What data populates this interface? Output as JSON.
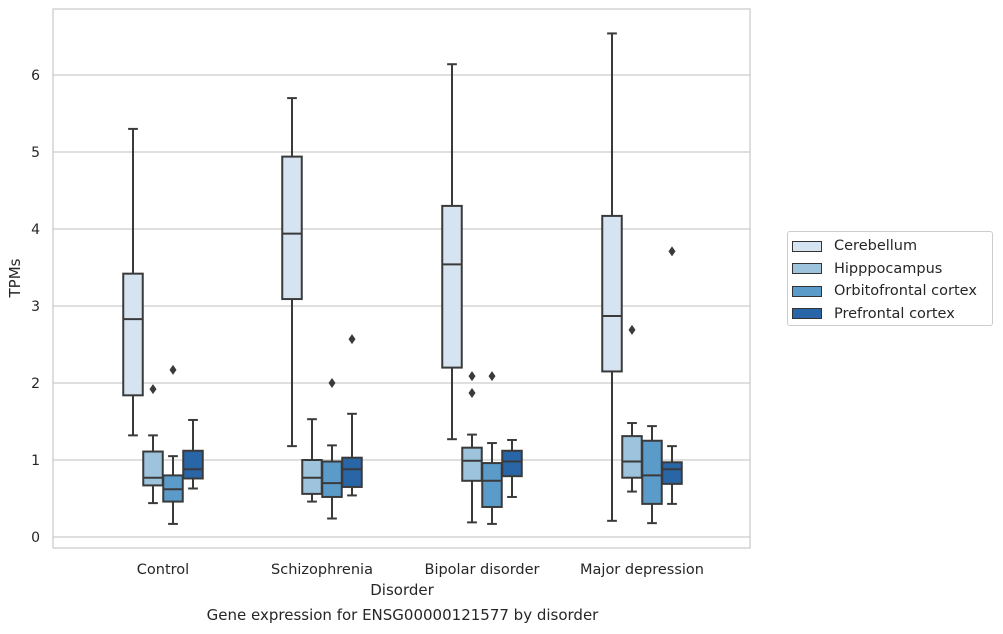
{
  "caption": "Gene expression for ENSG00000121577 by disorder",
  "chart_data": {
    "type": "boxplot",
    "title": "",
    "xlabel": "Disorder",
    "ylabel": "TPMs",
    "ylim": [
      -0.15,
      6.85
    ],
    "yticks": [
      0,
      1,
      2,
      3,
      4,
      5,
      6
    ],
    "grid": "horizontal",
    "legend_position": "right",
    "categories": [
      "Control",
      "Schizophrenia",
      "Bipolar disorder",
      "Major depression"
    ],
    "series": [
      {
        "name": "Cerebellum",
        "color": "#d6e4f1",
        "boxes": [
          {
            "whislo": 1.32,
            "q1": 1.84,
            "med": 2.83,
            "q3": 3.42,
            "whishi": 5.3,
            "fliers": []
          },
          {
            "whislo": 1.18,
            "q1": 3.09,
            "med": 3.94,
            "q3": 4.94,
            "whishi": 5.7,
            "fliers": []
          },
          {
            "whislo": 1.27,
            "q1": 2.2,
            "med": 3.54,
            "q3": 4.3,
            "whishi": 6.14,
            "fliers": []
          },
          {
            "whislo": 0.21,
            "q1": 2.15,
            "med": 2.87,
            "q3": 4.17,
            "whishi": 6.54,
            "fliers": []
          }
        ]
      },
      {
        "name": "Hipppocampus",
        "color": "#9dc3dd",
        "boxes": [
          {
            "whislo": 0.44,
            "q1": 0.67,
            "med": 0.77,
            "q3": 1.11,
            "whishi": 1.32,
            "fliers": [
              1.92
            ]
          },
          {
            "whislo": 0.46,
            "q1": 0.56,
            "med": 0.77,
            "q3": 1.0,
            "whishi": 1.53,
            "fliers": []
          },
          {
            "whislo": 0.19,
            "q1": 0.73,
            "med": 0.99,
            "q3": 1.16,
            "whishi": 1.33,
            "fliers": [
              2.09,
              1.87
            ]
          },
          {
            "whislo": 0.59,
            "q1": 0.77,
            "med": 0.98,
            "q3": 1.31,
            "whishi": 1.48,
            "fliers": [
              2.69
            ]
          }
        ]
      },
      {
        "name": "Orbitofrontal cortex",
        "color": "#5a9bc9",
        "boxes": [
          {
            "whislo": 0.17,
            "q1": 0.46,
            "med": 0.62,
            "q3": 0.8,
            "whishi": 1.05,
            "fliers": [
              2.17
            ]
          },
          {
            "whislo": 0.24,
            "q1": 0.52,
            "med": 0.7,
            "q3": 0.98,
            "whishi": 1.19,
            "fliers": [
              2.0
            ]
          },
          {
            "whislo": 0.17,
            "q1": 0.39,
            "med": 0.73,
            "q3": 0.96,
            "whishi": 1.22,
            "fliers": [
              2.09
            ]
          },
          {
            "whislo": 0.18,
            "q1": 0.43,
            "med": 0.8,
            "q3": 1.25,
            "whishi": 1.44,
            "fliers": []
          }
        ]
      },
      {
        "name": "Prefrontal cortex",
        "color": "#2866a8",
        "boxes": [
          {
            "whislo": 0.63,
            "q1": 0.76,
            "med": 0.88,
            "q3": 1.12,
            "whishi": 1.52,
            "fliers": []
          },
          {
            "whislo": 0.54,
            "q1": 0.65,
            "med": 0.88,
            "q3": 1.03,
            "whishi": 1.6,
            "fliers": [
              2.57
            ]
          },
          {
            "whislo": 0.52,
            "q1": 0.79,
            "med": 0.98,
            "q3": 1.12,
            "whishi": 1.26,
            "fliers": []
          },
          {
            "whislo": 0.43,
            "q1": 0.69,
            "med": 0.88,
            "q3": 0.97,
            "whishi": 1.18,
            "fliers": [
              3.71
            ]
          }
        ]
      }
    ]
  }
}
